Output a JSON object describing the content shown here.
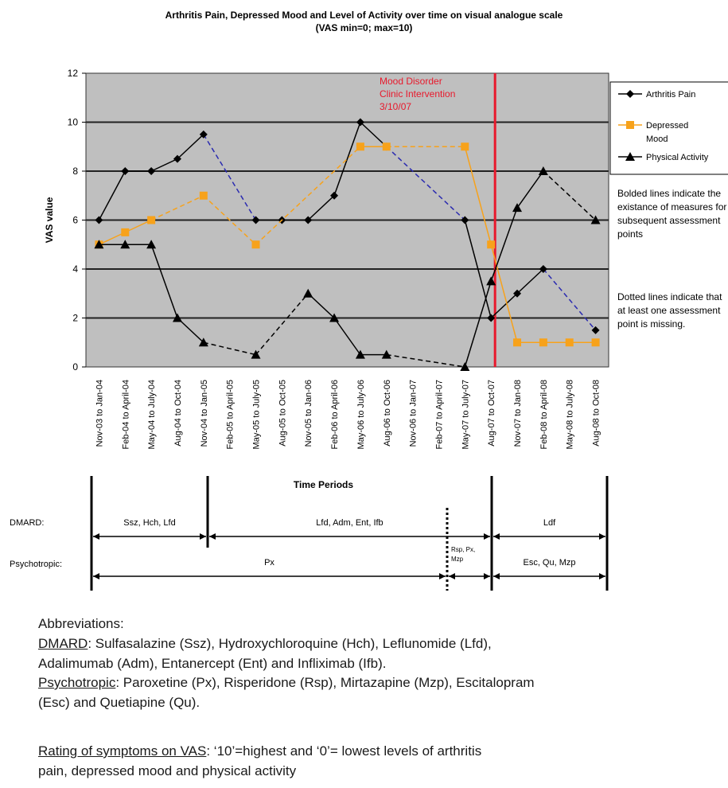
{
  "title_line1": "Arthritis Pain, Depressed Mood and Level of Activity over time on visual analogue scale",
  "title_line2": "(VAS min=0; max=10)",
  "chart_data": {
    "type": "line",
    "title": "Arthritis Pain, Depressed Mood and Level of Activity over time on visual analogue scale (VAS min=0; max=10)",
    "xlabel": "Time Periods",
    "ylabel": "VAS value",
    "ylim": [
      0,
      12
    ],
    "yticks": [
      0,
      2,
      4,
      6,
      8,
      10,
      12
    ],
    "grid": true,
    "legend_position": "right",
    "categories": [
      "Nov-03 to Jan-04",
      "Feb-04 to April-04",
      "May-04 to July-04",
      "Aug-04 to Oct-04",
      "Nov-04 to Jan-05",
      "Feb-05 to April-05",
      "May-05 to July-05",
      "Aug-05 to Oct-05",
      "Nov-05 to Jan-06",
      "Feb-06 to April-06",
      "May-06 to July-06",
      "Aug-06 to Oct-06",
      "Nov-06 to Jan-07",
      "Feb-07 to April-07",
      "May-07 to July-07",
      "Aug-07 to Oct-07",
      "Nov-07 to Jan-08",
      "Feb-08 to April-08",
      "May-08 to July-08",
      "Aug-08 to Oct-08"
    ],
    "series": [
      {
        "name": "Arthritis Pain",
        "color": "#000000",
        "marker": "diamond",
        "values": [
          6,
          8,
          8,
          8.5,
          9.5,
          null,
          6,
          6,
          6,
          7,
          10,
          9,
          null,
          null,
          6,
          2,
          3,
          4,
          null,
          1.5
        ]
      },
      {
        "name": "Depressed Mood",
        "color": "#f7a21b",
        "marker": "square",
        "values": [
          5,
          5.5,
          6,
          null,
          7,
          null,
          5,
          null,
          null,
          null,
          9,
          9,
          null,
          null,
          9,
          5,
          1,
          1,
          1,
          1
        ]
      },
      {
        "name": "Physical Activity",
        "color": "#000000",
        "marker": "triangle",
        "values": [
          5,
          5,
          5,
          2,
          1,
          null,
          0.5,
          null,
          3,
          2,
          0.5,
          0.5,
          null,
          null,
          0,
          3.5,
          6.5,
          8,
          null,
          6
        ]
      }
    ],
    "annotations": [
      {
        "text_lines": [
          "Mood Disorder",
          "Clinic Intervention",
          "3/10/07"
        ],
        "color": "#e8192c",
        "at_category": "Aug-07 to Oct-07"
      }
    ]
  },
  "legend": [
    {
      "label_lines": [
        "Arthritis Pain"
      ],
      "color": "#000000",
      "marker": "diamond"
    },
    {
      "label_lines": [
        "Depressed",
        "Mood"
      ],
      "color": "#f7a21b",
      "marker": "square"
    },
    {
      "label_lines": [
        "Physical Activity"
      ],
      "color": "#000000",
      "marker": "triangle"
    }
  ],
  "notes": {
    "bolded": "Bolded lines indicate the existance of measures for subsequent assessment points",
    "dotted": "Dotted lines indicate that at least one assessment point is missing."
  },
  "timeline": {
    "dmard_label": "DMARD:",
    "psychotropic_label": "Psychotropic:",
    "dmard_periods": [
      "Ssz, Hch, Lfd",
      "Lfd, Adm, Ent, Ifb",
      "Ldf"
    ],
    "psycho_periods": [
      "Px",
      "Rsp, Px,",
      "Mzp",
      "Esc, Qu, Mzp"
    ]
  },
  "abbreviations": {
    "heading": "Abbreviations:",
    "dmard_term": "DMARD",
    "dmard_text": ": Sulfasalazine (Ssz), Hydroxychloroquine (Hch), Leflunomide (Lfd),",
    "dmard_text2": "Adalimumab (Adm), Entanercept (Ent) and Infliximab (Ifb).",
    "psycho_term": "Psychotropic",
    "psycho_text": ": Paroxetine (Px), Risperidone (Rsp), Mirtazapine (Mzp), Escitalopram",
    "psycho_text2": "(Esc) and Quetiapine (Qu).",
    "rating_term": "Rating of symptoms on VAS",
    "rating_text": ": ‘10’=highest and ‘0’= lowest levels of arthritis",
    "rating_text2": "pain, depressed mood and physical activity"
  }
}
